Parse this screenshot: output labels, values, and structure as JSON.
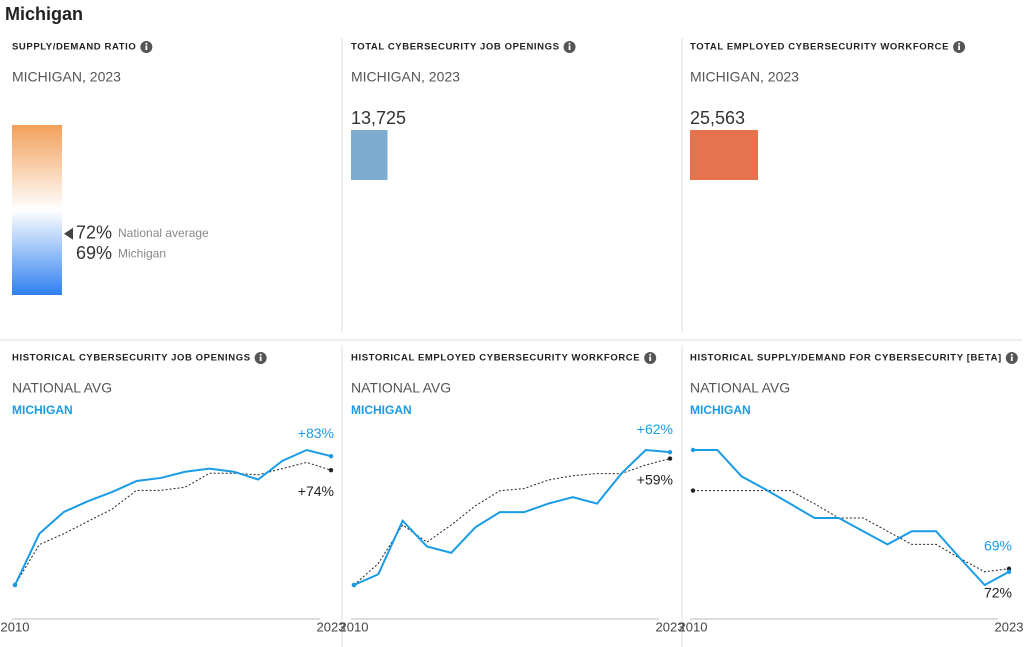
{
  "title": "Michigan",
  "ratio": {
    "heading": "SUPPLY/DEMAND RATIO",
    "subheading": "MICHIGAN, 2023",
    "ylim": [
      63,
      88
    ],
    "colors": [
      "#f2a05a",
      "#ffffff",
      "#2f80f0"
    ],
    "markers": [
      {
        "name": "National average",
        "value": 72,
        "label": "72%"
      },
      {
        "name": "Michigan",
        "value": 69,
        "label": "69%"
      }
    ]
  },
  "totals": [
    {
      "heading": "TOTAL CYBERSECURITY JOB OPENINGS",
      "subheading": "MICHIGAN, 2023",
      "value": 13725,
      "label": "13,725",
      "color": "#7eacd0"
    },
    {
      "heading": "TOTAL EMPLOYED CYBERSECURITY WORKFORCE",
      "subheading": "MICHIGAN, 2023",
      "value": 25563,
      "label": "25,563",
      "color": "#e5734d"
    }
  ],
  "history": [
    {
      "heading": "HISTORICAL CYBERSECURITY JOB OPENINGS",
      "categories": [
        "2010",
        null,
        null,
        null,
        null,
        null,
        null,
        null,
        null,
        null,
        null,
        null,
        null,
        "2023"
      ],
      "series": [
        {
          "name": "NATIONAL AVG",
          "color": "#222222",
          "values": [
            0,
            26,
            33,
            41,
            49,
            61,
            61,
            63,
            72,
            72,
            71,
            75,
            79,
            74
          ],
          "end_label": "+74%"
        },
        {
          "name": "MICHIGAN",
          "color": "#1a9be6",
          "values": [
            0,
            33,
            47,
            54,
            60,
            67,
            69,
            73,
            75,
            73,
            68,
            80,
            87,
            83
          ],
          "end_label": "+83%"
        }
      ]
    },
    {
      "heading": "HISTORICAL EMPLOYED CYBERSECURITY WORKFORCE",
      "categories": [
        "2010",
        null,
        null,
        null,
        null,
        null,
        null,
        null,
        null,
        null,
        null,
        null,
        null,
        "2023"
      ],
      "series": [
        {
          "name": "NATIONAL AVG",
          "color": "#222222",
          "values": [
            0,
            10,
            28,
            20,
            28,
            37,
            44,
            45,
            49,
            51,
            52,
            52,
            56,
            59
          ],
          "end_label": "+59%"
        },
        {
          "name": "MICHIGAN",
          "color": "#1a9be6",
          "values": [
            0,
            5,
            30,
            18,
            15,
            27,
            34,
            34,
            38,
            41,
            38,
            52,
            63,
            62
          ],
          "end_label": "+62%"
        }
      ]
    },
    {
      "heading": "HISTORICAL SUPPLY/DEMAND FOR CYBERSECURITY [BETA]",
      "categories": [
        "2010",
        null,
        null,
        null,
        null,
        null,
        null,
        null,
        null,
        null,
        null,
        null,
        null,
        "2023"
      ],
      "series": [
        {
          "name": "NATIONAL AVG",
          "color": "#222222",
          "values": [
            149,
            149,
            149,
            149,
            149,
            136,
            122,
            122,
            109,
            96,
            96,
            82,
            69,
            72
          ],
          "end_label": "72%"
        },
        {
          "name": "MICHIGAN",
          "color": "#1a9be6",
          "values": [
            189,
            189,
            163,
            150,
            136,
            122,
            122,
            109,
            96,
            109,
            109,
            82,
            56,
            69
          ],
          "end_label": "69%"
        }
      ]
    }
  ]
}
